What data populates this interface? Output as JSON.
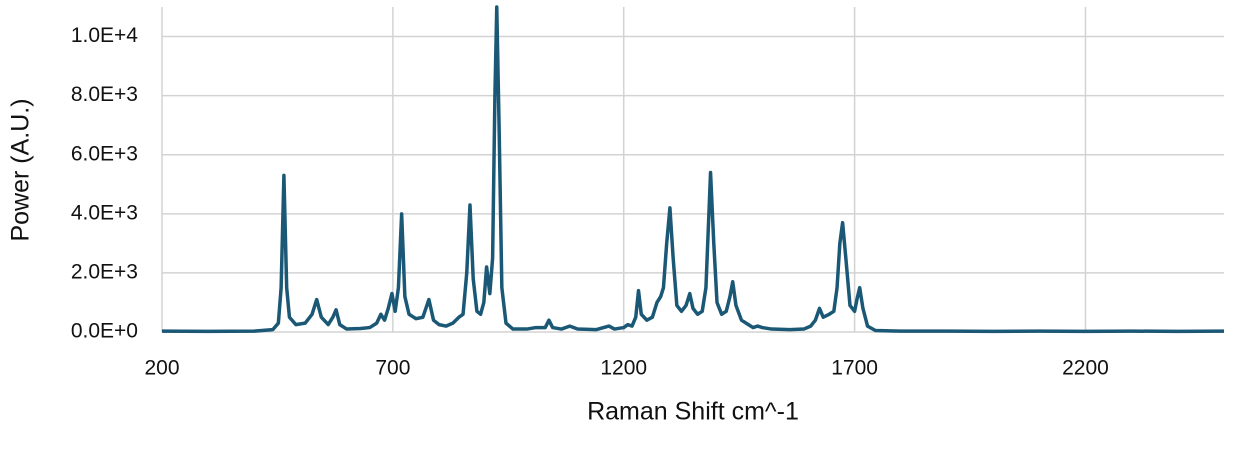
{
  "chart_data": {
    "type": "line",
    "xlabel": "Raman Shift cm^-1",
    "ylabel": "Power (A.U.)",
    "xlim": [
      200,
      2500
    ],
    "ylim": [
      0,
      11000
    ],
    "xticks": [
      200,
      700,
      1200,
      1700,
      2200
    ],
    "yticks": [
      {
        "value": 0,
        "label": "0.0E+0"
      },
      {
        "value": 2000,
        "label": "2.0E+3"
      },
      {
        "value": 4000,
        "label": "4.0E+3"
      },
      {
        "value": 6000,
        "label": "6.0E+3"
      },
      {
        "value": 8000,
        "label": "8.0E+3"
      },
      {
        "value": 10000,
        "label": "1.0E+4"
      }
    ],
    "grid": true,
    "color": "#1b5876",
    "x": [
      200,
      300,
      400,
      440,
      452,
      458,
      464,
      470,
      476,
      490,
      510,
      525,
      535,
      545,
      560,
      570,
      577,
      585,
      600,
      630,
      650,
      665,
      674,
      682,
      690,
      698,
      705,
      712,
      719,
      726,
      735,
      750,
      765,
      778,
      788,
      800,
      815,
      830,
      843,
      852,
      860,
      867,
      874,
      882,
      890,
      897,
      903,
      910,
      916,
      921,
      925,
      930,
      936,
      945,
      960,
      990,
      1010,
      1030,
      1038,
      1046,
      1065,
      1083,
      1100,
      1140,
      1168,
      1180,
      1200,
      1209,
      1218,
      1226,
      1232,
      1238,
      1250,
      1262,
      1272,
      1280,
      1286,
      1293,
      1300,
      1307,
      1315,
      1325,
      1335,
      1343,
      1350,
      1360,
      1370,
      1378,
      1388,
      1395,
      1402,
      1412,
      1422,
      1430,
      1436,
      1443,
      1455,
      1470,
      1480,
      1490,
      1500,
      1520,
      1560,
      1590,
      1605,
      1615,
      1624,
      1632,
      1645,
      1655,
      1662,
      1668,
      1674,
      1681,
      1690,
      1700,
      1705,
      1711,
      1718,
      1728,
      1745,
      1800,
      1900,
      2000,
      2100,
      2200,
      2300,
      2400,
      2500
    ],
    "values": [
      30,
      20,
      30,
      80,
      300,
      1500,
      5300,
      1500,
      500,
      250,
      300,
      600,
      1100,
      500,
      250,
      500,
      750,
      250,
      100,
      120,
      150,
      300,
      600,
      400,
      800,
      1300,
      700,
      1500,
      4000,
      1200,
      600,
      450,
      500,
      1100,
      400,
      250,
      200,
      300,
      500,
      600,
      2000,
      4300,
      1800,
      700,
      600,
      1000,
      2200,
      1300,
      2500,
      8000,
      11000,
      7000,
      1500,
      300,
      100,
      100,
      150,
      150,
      400,
      150,
      100,
      200,
      100,
      80,
      200,
      100,
      150,
      250,
      200,
      500,
      1400,
      600,
      400,
      500,
      1000,
      1200,
      1500,
      3000,
      4200,
      2500,
      900,
      700,
      900,
      1300,
      800,
      600,
      700,
      1500,
      5400,
      3000,
      1000,
      600,
      700,
      1200,
      1700,
      900,
      400,
      250,
      150,
      200,
      150,
      100,
      80,
      100,
      200,
      400,
      800,
      500,
      600,
      700,
      1500,
      3000,
      3700,
      2500,
      900,
      700,
      1100,
      1500,
      800,
      200,
      50,
      30,
      30,
      20,
      30,
      20,
      30,
      20,
      30
    ]
  }
}
